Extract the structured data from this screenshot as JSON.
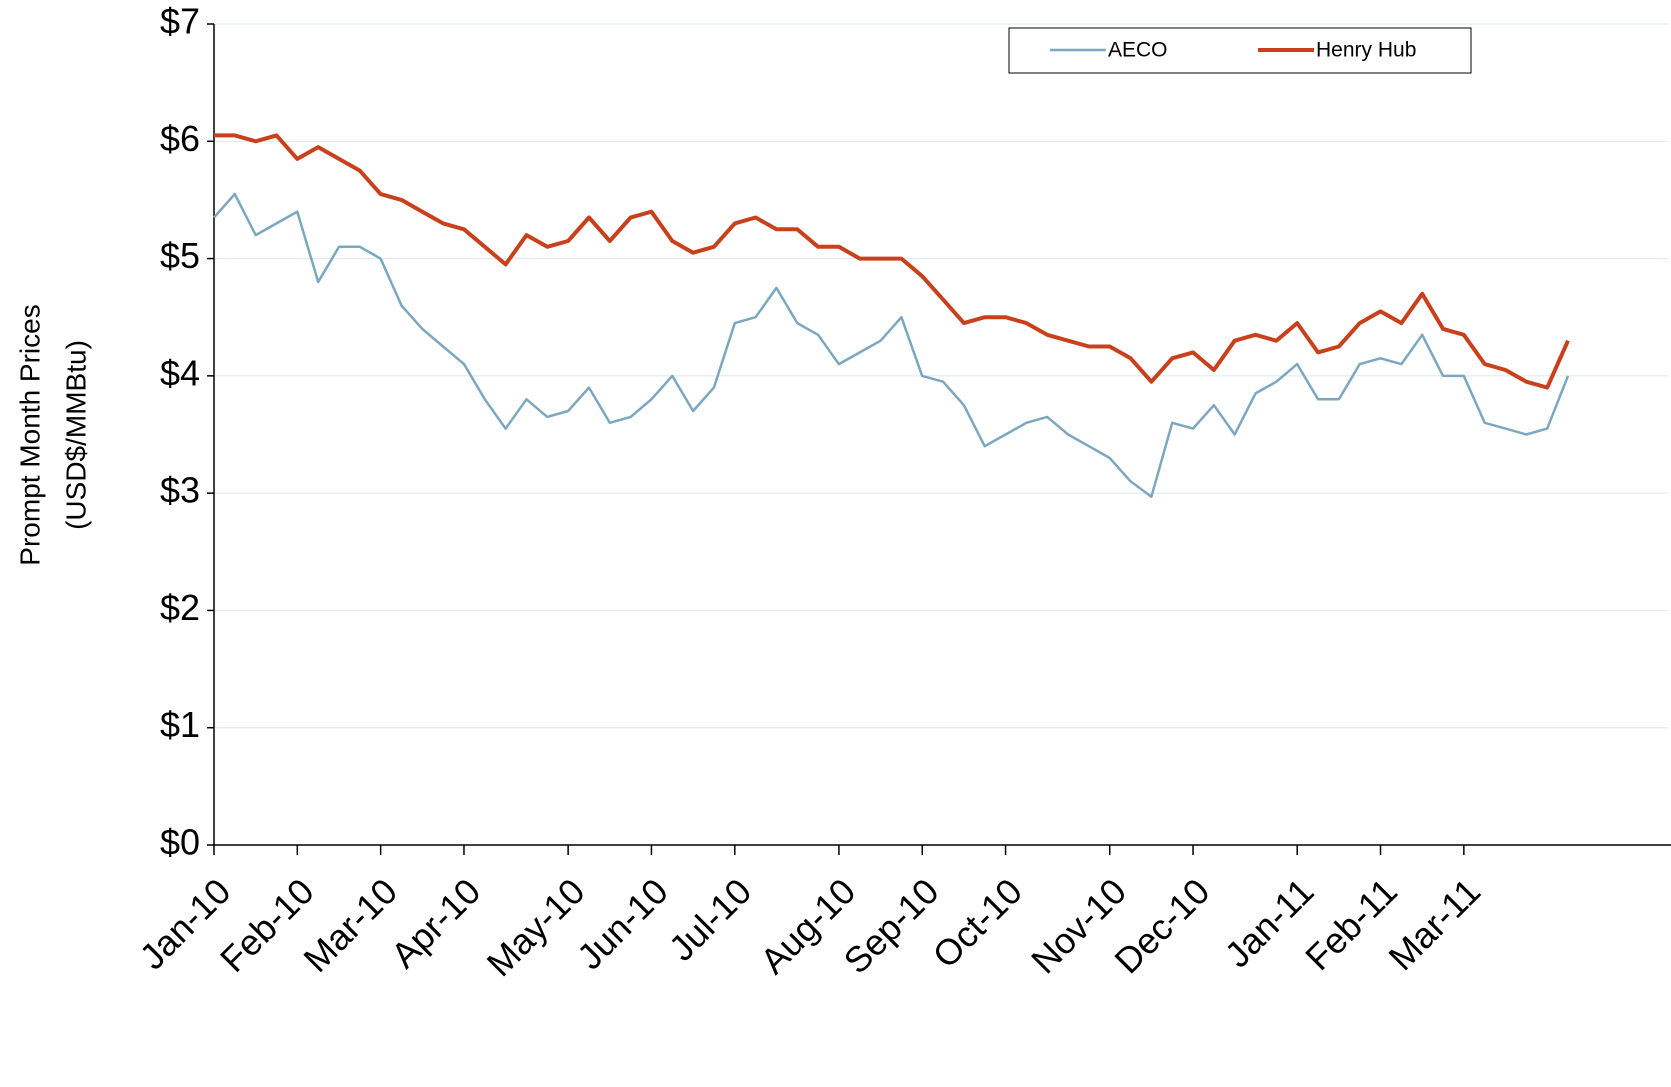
{
  "chart_data": {
    "type": "line",
    "ylabel": [
      "Prompt Month Prices",
      "(USD$/MMBtu)"
    ],
    "categories": [
      "Jan-10",
      null,
      null,
      null,
      "Feb-10",
      null,
      null,
      null,
      "Mar-10",
      null,
      null,
      null,
      "Apr-10",
      null,
      null,
      null,
      null,
      "May-10",
      null,
      null,
      null,
      "Jun-10",
      null,
      null,
      null,
      "Jul-10",
      null,
      null,
      null,
      null,
      "Aug-10",
      null,
      null,
      null,
      "Sep-10",
      null,
      null,
      null,
      "Oct-10",
      null,
      null,
      null,
      null,
      "Nov-10",
      null,
      null,
      null,
      "Dec-10",
      null,
      null,
      null,
      null,
      "Jan-11",
      null,
      null,
      null,
      "Feb-11",
      null,
      null,
      null,
      "Mar-11",
      null,
      null,
      null,
      null,
      null
    ],
    "series": [
      {
        "name": "AECO",
        "color": "#7ba7bf",
        "values": [
          5.35,
          5.55,
          5.2,
          5.3,
          5.4,
          4.8,
          5.1,
          5.1,
          5.0,
          4.6,
          4.4,
          4.25,
          4.1,
          3.8,
          3.55,
          3.8,
          3.65,
          3.7,
          3.9,
          3.6,
          3.65,
          3.8,
          4.0,
          3.7,
          3.9,
          4.45,
          4.5,
          4.75,
          4.45,
          4.35,
          4.1,
          4.2,
          4.3,
          4.5,
          4.0,
          3.95,
          3.75,
          3.4,
          3.5,
          3.6,
          3.65,
          3.5,
          3.4,
          3.3,
          3.1,
          2.97,
          3.6,
          3.55,
          3.75,
          3.5,
          3.85,
          3.95,
          4.1,
          3.8,
          3.8,
          4.1,
          4.15,
          4.1,
          4.35,
          4.0,
          4.0,
          3.6,
          3.55,
          3.5,
          3.55,
          4.0
        ]
      },
      {
        "name": "Henry Hub",
        "color": "#c8401c",
        "values": [
          6.05,
          6.05,
          6.0,
          6.05,
          5.85,
          5.95,
          5.85,
          5.75,
          5.55,
          5.5,
          5.4,
          5.3,
          5.25,
          5.1,
          4.95,
          5.2,
          5.1,
          5.15,
          5.35,
          5.15,
          5.35,
          5.4,
          5.15,
          5.05,
          5.1,
          5.3,
          5.35,
          5.25,
          5.25,
          5.1,
          5.1,
          5.0,
          5.0,
          5.0,
          4.85,
          4.65,
          4.45,
          4.5,
          4.5,
          4.45,
          4.35,
          4.3,
          4.25,
          4.25,
          4.15,
          3.95,
          4.15,
          4.2,
          4.05,
          4.3,
          4.35,
          4.3,
          4.45,
          4.2,
          4.25,
          4.45,
          4.55,
          4.45,
          4.7,
          4.4,
          4.35,
          4.1,
          4.05,
          3.95,
          3.9,
          4.3
        ]
      }
    ],
    "ylim": [
      0,
      7
    ],
    "yticks": [
      {
        "value": 0,
        "label": "$0"
      },
      {
        "value": 1,
        "label": "$1"
      },
      {
        "value": 2,
        "label": "$2"
      },
      {
        "value": 3,
        "label": "$3"
      },
      {
        "value": 4,
        "label": "$4"
      },
      {
        "value": 5,
        "label": "$5"
      },
      {
        "value": 6,
        "label": "$6"
      },
      {
        "value": 7,
        "label": "$7"
      }
    ],
    "grid": true,
    "legend": "top-right"
  }
}
